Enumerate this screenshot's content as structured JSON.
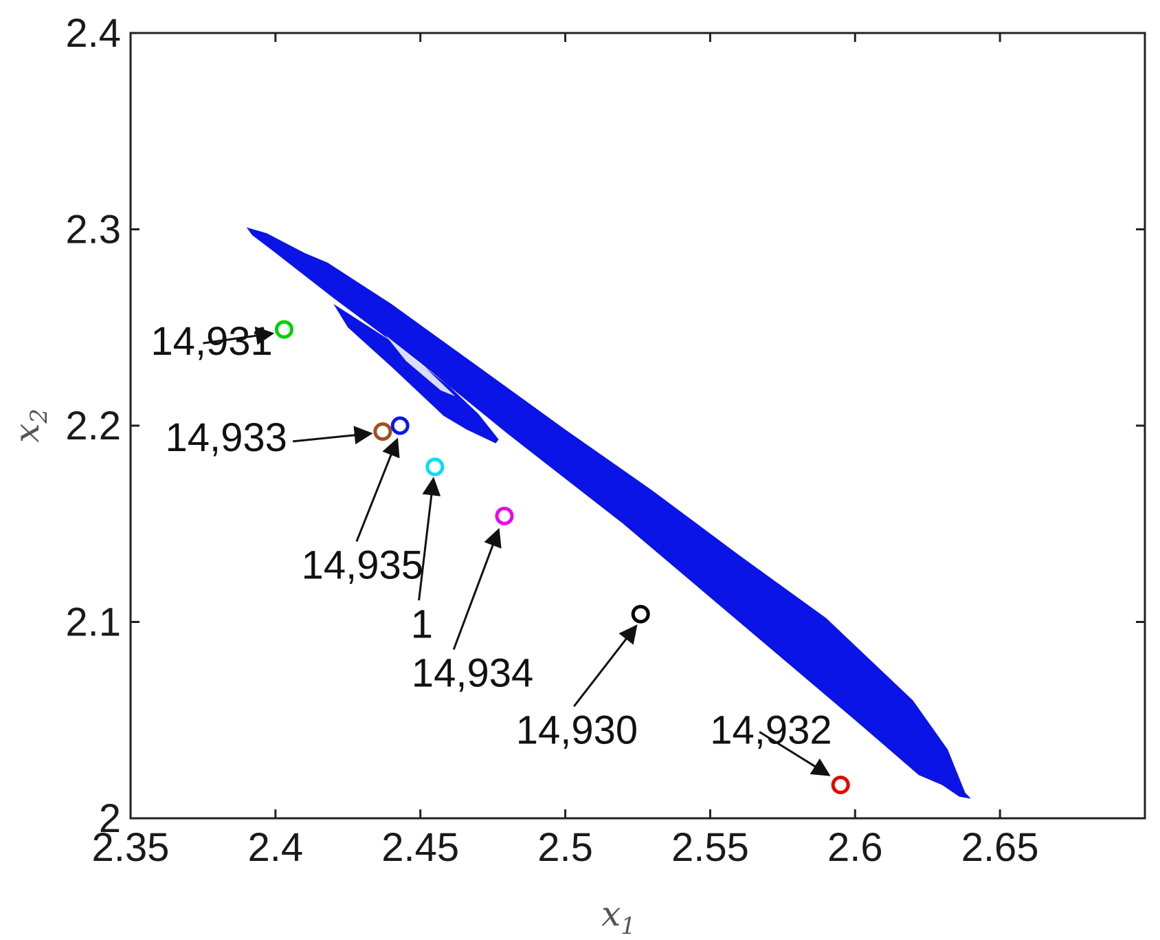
{
  "chart_data": {
    "type": "scatter",
    "title": "",
    "xlabel": "x",
    "xlabel_subscript": "1",
    "ylabel": "x",
    "ylabel_subscript": "2",
    "xlim": [
      2.35,
      2.7
    ],
    "ylim": [
      2.0,
      2.4
    ],
    "xticks": [
      2.35,
      2.4,
      2.45,
      2.5,
      2.55,
      2.6,
      2.65
    ],
    "xtick_labels": [
      "2.35",
      "2.4",
      "2.45",
      "2.5",
      "2.55",
      "2.6",
      "2.65"
    ],
    "yticks": [
      2.0,
      2.1,
      2.2,
      2.3,
      2.4
    ],
    "ytick_labels": [
      "2",
      "2.1",
      "2.2",
      "2.3",
      "2.4"
    ],
    "grid": false,
    "attractor": {
      "color": "#0a14e6",
      "outer_outline": [
        [
          2.39,
          2.301
        ],
        [
          2.397,
          2.298
        ],
        [
          2.41,
          2.288
        ],
        [
          2.418,
          2.283
        ],
        [
          2.44,
          2.262
        ],
        [
          2.47,
          2.23
        ],
        [
          2.5,
          2.198
        ],
        [
          2.53,
          2.167
        ],
        [
          2.56,
          2.134
        ],
        [
          2.59,
          2.102
        ],
        [
          2.62,
          2.06
        ],
        [
          2.632,
          2.035
        ],
        [
          2.638,
          2.013
        ],
        [
          2.64,
          2.01
        ],
        [
          2.636,
          2.011
        ],
        [
          2.63,
          2.017
        ],
        [
          2.622,
          2.022
        ],
        [
          2.6,
          2.05
        ],
        [
          2.56,
          2.1
        ],
        [
          2.52,
          2.15
        ],
        [
          2.48,
          2.196
        ],
        [
          2.45,
          2.232
        ],
        [
          2.42,
          2.265
        ],
        [
          2.4,
          2.288
        ],
        [
          2.392,
          2.297
        ]
      ],
      "inner_lobe": [
        [
          2.42,
          2.262
        ],
        [
          2.44,
          2.243
        ],
        [
          2.46,
          2.22
        ],
        [
          2.47,
          2.206
        ],
        [
          2.477,
          2.193
        ],
        [
          2.476,
          2.191
        ],
        [
          2.466,
          2.198
        ],
        [
          2.458,
          2.205
        ],
        [
          2.44,
          2.23
        ],
        [
          2.425,
          2.25
        ]
      ],
      "lobe_gap": [
        [
          2.438,
          2.246
        ],
        [
          2.45,
          2.232
        ],
        [
          2.462,
          2.215
        ],
        [
          2.457,
          2.218
        ],
        [
          2.445,
          2.233
        ]
      ]
    },
    "points": [
      {
        "x": 2.403,
        "y": 2.249,
        "color": "#00d000",
        "label": "14,931"
      },
      {
        "x": 2.437,
        "y": 2.197,
        "color": "#a0501e",
        "label": "14,933"
      },
      {
        "x": 2.443,
        "y": 2.2,
        "color": "#0a1ae6",
        "label": "14,935"
      },
      {
        "x": 2.455,
        "y": 2.179,
        "color": "#00e0f0",
        "label": "1"
      },
      {
        "x": 2.479,
        "y": 2.154,
        "color": "#ee00ee",
        "label": "14,934"
      },
      {
        "x": 2.526,
        "y": 2.104,
        "color": "#000000",
        "label": "14,930"
      },
      {
        "x": 2.595,
        "y": 2.017,
        "color": "#e80000",
        "label": "14,932"
      }
    ],
    "annotations": [
      {
        "text": "14,931",
        "text_x": 2.378,
        "text_y": 2.236,
        "arrow_from": [
          2.375,
          2.242
        ],
        "arrow_to": [
          2.399,
          2.247
        ]
      },
      {
        "text": "14,933",
        "text_x": 2.383,
        "text_y": 2.187,
        "arrow_from": [
          2.406,
          2.192
        ],
        "arrow_to": [
          2.433,
          2.196
        ]
      },
      {
        "text": "14,935",
        "text_x": 2.43,
        "text_y": 2.122,
        "arrow_from": [
          2.428,
          2.141
        ],
        "arrow_to": [
          2.442,
          2.193
        ]
      },
      {
        "text": "1",
        "text_x": 2.4505,
        "text_y": 2.092,
        "arrow_from": [
          2.4495,
          2.111
        ],
        "arrow_to": [
          2.4545,
          2.173
        ]
      },
      {
        "text": "14,934",
        "text_x": 2.468,
        "text_y": 2.067,
        "arrow_from": [
          2.4615,
          2.086
        ],
        "arrow_to": [
          2.477,
          2.147
        ]
      },
      {
        "text": "14,930",
        "text_x": 2.504,
        "text_y": 2.038,
        "arrow_from": [
          2.503,
          2.057
        ],
        "arrow_to": [
          2.5245,
          2.098
        ]
      },
      {
        "text": "14,932",
        "text_x": 2.571,
        "text_y": 2.038,
        "arrow_from": [
          2.567,
          2.044
        ],
        "arrow_to": [
          2.591,
          2.022
        ]
      }
    ]
  }
}
